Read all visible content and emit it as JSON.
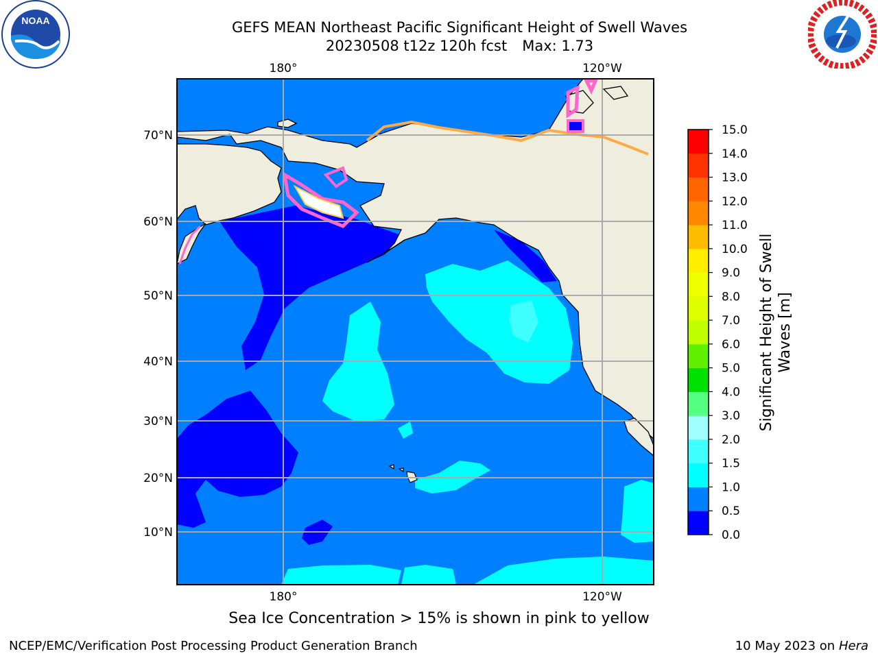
{
  "title": {
    "line1": "GEFS MEAN Northeast Pacific Significant Height of Swell Waves",
    "run": "20230508 t12z 120h fcst",
    "max": "Max: 1.73"
  },
  "logos": {
    "noaa": {
      "text": "NOAA",
      "icon": "noaa-logo-icon"
    },
    "nws": {
      "icon": "nws-logo-icon"
    }
  },
  "map": {
    "top_lon_labels": [
      "180°",
      "120°W"
    ],
    "bottom_lon_labels": [
      "180°",
      "120°W"
    ],
    "lat_labels": [
      "70°N",
      "60°N",
      "50°N",
      "40°N",
      "30°N",
      "20°N",
      "10°N"
    ],
    "land_color": "#efedde",
    "gridline_color": "#aaaaaa"
  },
  "colorbar": {
    "label_line1": "Significant Height of Swell",
    "label_line2": "Waves [m]",
    "levels": [
      {
        "from": 0.0,
        "to": 0.5,
        "color": "#0000ff"
      },
      {
        "from": 0.5,
        "to": 1.0,
        "color": "#0080ff"
      },
      {
        "from": 1.0,
        "to": 1.5,
        "color": "#00ffff"
      },
      {
        "from": 1.5,
        "to": 2.0,
        "color": "#40ffff"
      },
      {
        "from": 2.0,
        "to": 3.0,
        "color": "#a0ffff"
      },
      {
        "from": 3.0,
        "to": 4.0,
        "color": "#55ff80"
      },
      {
        "from": 4.0,
        "to": 5.0,
        "color": "#00e000"
      },
      {
        "from": 5.0,
        "to": 6.0,
        "color": "#60f000"
      },
      {
        "from": 6.0,
        "to": 7.0,
        "color": "#c0ff00"
      },
      {
        "from": 7.0,
        "to": 8.0,
        "color": "#ddff00"
      },
      {
        "from": 8.0,
        "to": 9.0,
        "color": "#eeff00"
      },
      {
        "from": 9.0,
        "to": 10.0,
        "color": "#ffee00"
      },
      {
        "from": 10.0,
        "to": 11.0,
        "color": "#ffbb00"
      },
      {
        "from": 11.0,
        "to": 12.0,
        "color": "#ff8800"
      },
      {
        "from": 12.0,
        "to": 13.0,
        "color": "#ff6600"
      },
      {
        "from": 13.0,
        "to": 14.0,
        "color": "#ff3300"
      },
      {
        "from": 14.0,
        "to": 15.0,
        "color": "#ff0000"
      }
    ],
    "tick_labels": [
      "0.0",
      "0.5",
      "1.0",
      "1.5",
      "2.0",
      "3.0",
      "4.0",
      "5.0",
      "6.0",
      "7.0",
      "8.0",
      "9.0",
      "10.0",
      "11.0",
      "12.0",
      "13.0",
      "14.0",
      "15.0"
    ]
  },
  "caption": "Sea Ice Concentration > 15% is shown in pink to yellow",
  "footer": {
    "left": "NCEP/EMC/Verification Post Processing Product Generation Branch",
    "date": "10 May 2023 on",
    "host": "Hera"
  }
}
